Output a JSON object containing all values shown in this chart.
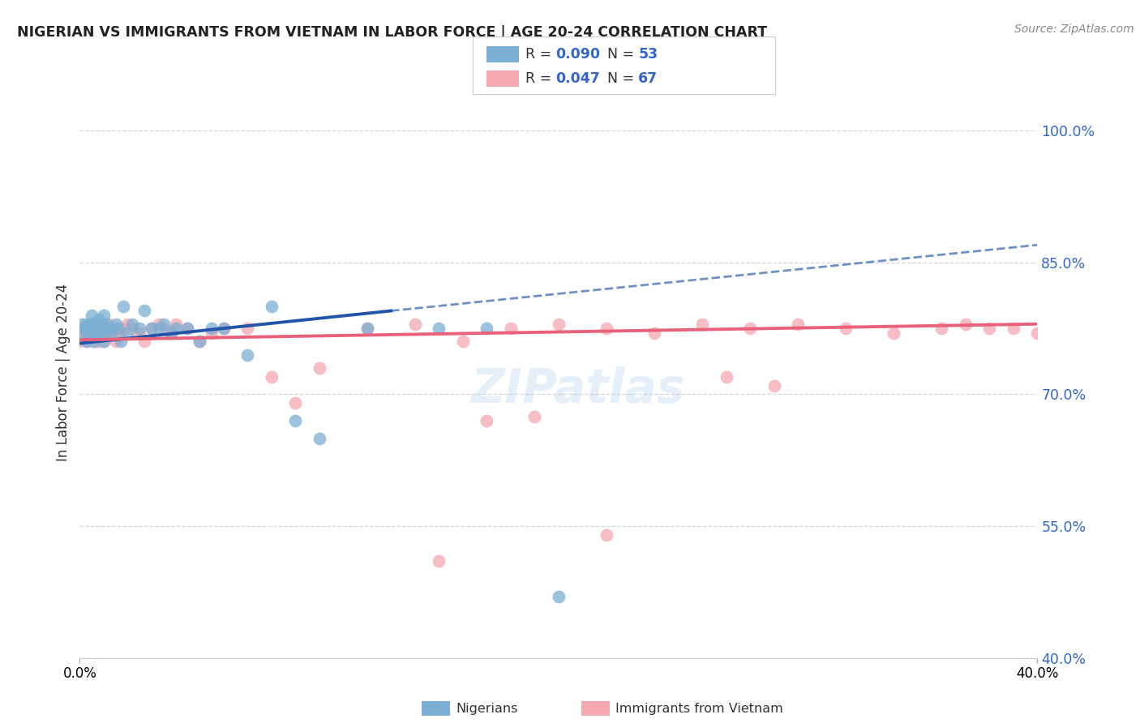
{
  "title": "NIGERIAN VS IMMIGRANTS FROM VIETNAM IN LABOR FORCE | AGE 20-24 CORRELATION CHART",
  "source": "Source: ZipAtlas.com",
  "ylabel": "In Labor Force | Age 20-24",
  "xlim": [
    0.0,
    0.4
  ],
  "ylim": [
    0.4,
    1.05
  ],
  "ytick_values": [
    0.4,
    0.55,
    0.7,
    0.85,
    1.0
  ],
  "legend_r_blue": "R = 0.090",
  "legend_n_blue": "N = 53",
  "legend_r_pink": "R = 0.047",
  "legend_n_pink": "N = 67",
  "legend_label_blue": "Nigerians",
  "legend_label_pink": "Immigrants from Vietnam",
  "blue_color": "#7BAFD4",
  "pink_color": "#F4A8B0",
  "blue_line_color": "#2255AA",
  "pink_line_color": "#E8607A",
  "watermark": "ZIPatlas",
  "blue_scatter_x": [
    0.0,
    0.001,
    0.002,
    0.003,
    0.003,
    0.004,
    0.004,
    0.005,
    0.005,
    0.005,
    0.006,
    0.006,
    0.006,
    0.007,
    0.007,
    0.007,
    0.008,
    0.008,
    0.008,
    0.009,
    0.009,
    0.01,
    0.01,
    0.011,
    0.011,
    0.012,
    0.013,
    0.013,
    0.015,
    0.016,
    0.017,
    0.018,
    0.02,
    0.022,
    0.025,
    0.027,
    0.03,
    0.033,
    0.035,
    0.038,
    0.04,
    0.045,
    0.05,
    0.055,
    0.06,
    0.07,
    0.08,
    0.09,
    0.1,
    0.12,
    0.15,
    0.17,
    0.2
  ],
  "blue_scatter_y": [
    0.77,
    0.78,
    0.775,
    0.76,
    0.78,
    0.77,
    0.775,
    0.775,
    0.79,
    0.78,
    0.775,
    0.78,
    0.76,
    0.77,
    0.775,
    0.78,
    0.775,
    0.785,
    0.77,
    0.78,
    0.775,
    0.79,
    0.76,
    0.775,
    0.78,
    0.775,
    0.77,
    0.775,
    0.78,
    0.775,
    0.76,
    0.8,
    0.77,
    0.78,
    0.775,
    0.795,
    0.775,
    0.775,
    0.78,
    0.77,
    0.775,
    0.775,
    0.76,
    0.775,
    0.775,
    0.745,
    0.8,
    0.67,
    0.65,
    0.775,
    0.775,
    0.775,
    0.47
  ],
  "pink_scatter_x": [
    0.0,
    0.001,
    0.002,
    0.003,
    0.004,
    0.004,
    0.005,
    0.005,
    0.006,
    0.006,
    0.007,
    0.007,
    0.008,
    0.008,
    0.009,
    0.009,
    0.01,
    0.01,
    0.011,
    0.011,
    0.012,
    0.013,
    0.014,
    0.015,
    0.016,
    0.017,
    0.018,
    0.02,
    0.022,
    0.025,
    0.027,
    0.03,
    0.033,
    0.035,
    0.038,
    0.04,
    0.045,
    0.05,
    0.055,
    0.06,
    0.07,
    0.08,
    0.09,
    0.1,
    0.12,
    0.14,
    0.16,
    0.18,
    0.2,
    0.22,
    0.24,
    0.26,
    0.28,
    0.3,
    0.32,
    0.34,
    0.36,
    0.37,
    0.38,
    0.39,
    0.4,
    0.27,
    0.29,
    0.19,
    0.17,
    0.22,
    0.15
  ],
  "pink_scatter_y": [
    0.76,
    0.77,
    0.775,
    0.76,
    0.77,
    0.775,
    0.78,
    0.77,
    0.775,
    0.76,
    0.77,
    0.775,
    0.76,
    0.775,
    0.77,
    0.775,
    0.76,
    0.775,
    0.77,
    0.775,
    0.78,
    0.775,
    0.77,
    0.76,
    0.775,
    0.77,
    0.775,
    0.78,
    0.775,
    0.77,
    0.76,
    0.775,
    0.78,
    0.775,
    0.77,
    0.78,
    0.775,
    0.76,
    0.77,
    0.775,
    0.775,
    0.72,
    0.69,
    0.73,
    0.775,
    0.78,
    0.76,
    0.775,
    0.78,
    0.775,
    0.77,
    0.78,
    0.775,
    0.78,
    0.775,
    0.77,
    0.775,
    0.78,
    0.775,
    0.775,
    0.77,
    0.72,
    0.71,
    0.675,
    0.67,
    0.54,
    0.51
  ],
  "blue_line_x0": 0.0,
  "blue_line_y0": 0.758,
  "blue_line_xsolid": 0.13,
  "blue_line_ysolid": 0.795,
  "blue_line_xdash": 0.4,
  "blue_line_ydash": 0.87,
  "pink_line_x0": 0.0,
  "pink_line_y0": 0.762,
  "pink_line_x1": 0.4,
  "pink_line_y1": 0.78
}
